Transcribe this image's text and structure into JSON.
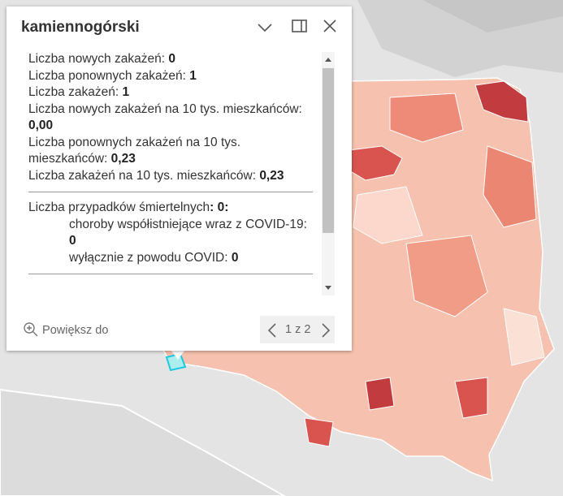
{
  "popup": {
    "title": "kamiennogórski",
    "stats": [
      {
        "label": "Liczba nowych zakażeń:",
        "value": "0"
      },
      {
        "label": "Liczba ponownych zakażeń:",
        "value": "1"
      },
      {
        "label": "Liczba zakażeń:",
        "value": "1"
      },
      {
        "label": "Liczba nowych zakażeń na 10 tys. mieszkańców:",
        "value": "0,00"
      },
      {
        "label": "Liczba ponownych zakażeń na 10 tys. mieszkańców:",
        "value": "0,23"
      },
      {
        "label": "Liczba zakażeń na 10 tys. mieszkańców:",
        "value": "0,23"
      }
    ],
    "deaths": {
      "label": "Liczba przypadków śmiertelnych",
      "value": ": 0:",
      "items": [
        {
          "label": "choroby współistniejące wraz z COVID-19:",
          "value": "0"
        },
        {
          "label": "wyłącznie z powodu COVID:",
          "value": "0"
        }
      ]
    },
    "zoom": "Powiększ do",
    "pager": "1 z 2"
  }
}
